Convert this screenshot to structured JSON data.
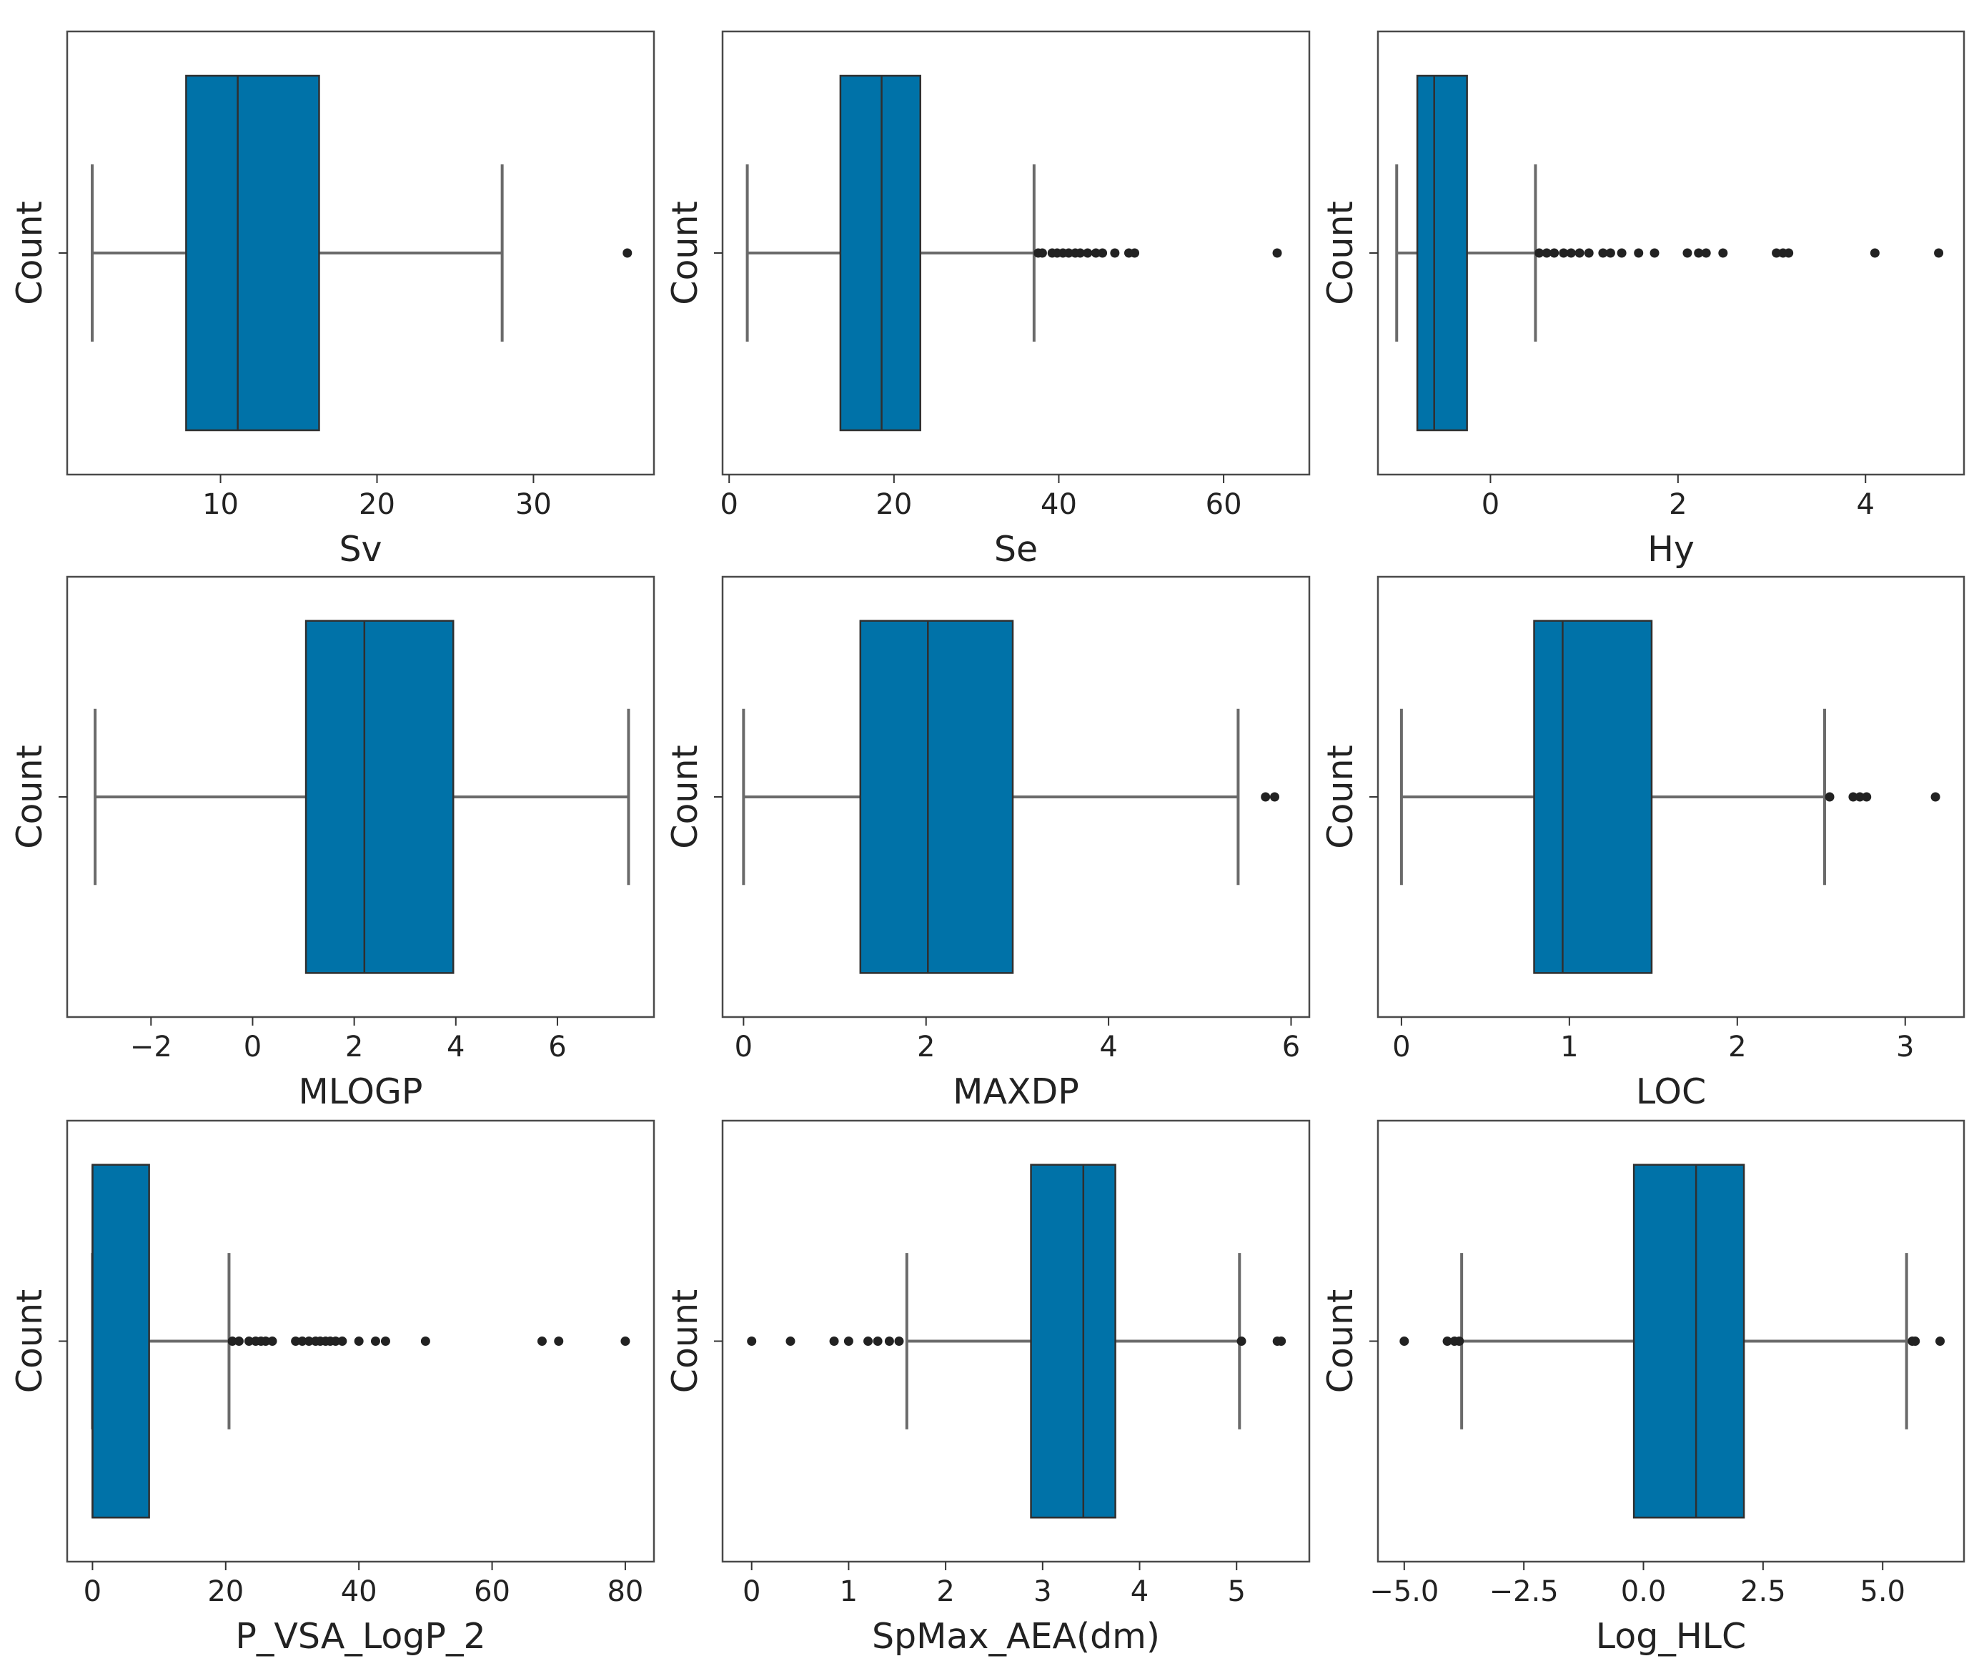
{
  "chart_data": [
    {
      "type": "box",
      "xlabel": "Sv",
      "ylabel": "Count",
      "xlim": [
        0.2,
        37.7
      ],
      "xticks": [
        10,
        20,
        30
      ],
      "tick_labels": [
        "10",
        "20",
        "30"
      ],
      "whisker_low": 1.8,
      "q1": 7.8,
      "median": 11.1,
      "q3": 16.3,
      "whisker_high": 28.0,
      "outliers": [
        36.0
      ]
    },
    {
      "type": "box",
      "xlabel": "Se",
      "ylabel": "Count",
      "xlim": [
        -0.8,
        70.4
      ],
      "xticks": [
        0,
        20,
        40,
        60
      ],
      "tick_labels": [
        "0",
        "20",
        "40",
        "60"
      ],
      "whisker_low": 2.2,
      "q1": 13.5,
      "median": 18.5,
      "q3": 23.2,
      "whisker_high": 37.0,
      "outliers": [
        37.5,
        38.0,
        39.2,
        39.8,
        40.5,
        41.2,
        42.0,
        42.6,
        43.5,
        44.5,
        45.3,
        46.8,
        48.5,
        49.2,
        66.5
      ]
    },
    {
      "type": "box",
      "xlabel": "Hy",
      "ylabel": "Count",
      "xlim": [
        -1.2,
        5.05
      ],
      "xticks": [
        0,
        2,
        4
      ],
      "tick_labels": [
        "0",
        "2",
        "4"
      ],
      "whisker_low": -1.0,
      "q1": -0.78,
      "median": -0.6,
      "q3": -0.25,
      "whisker_high": 0.48,
      "outliers": [
        0.52,
        0.6,
        0.68,
        0.78,
        0.86,
        0.95,
        1.05,
        1.2,
        1.28,
        1.4,
        1.58,
        1.75,
        2.1,
        2.22,
        2.3,
        2.48,
        3.05,
        3.12,
        3.18,
        4.1,
        4.78
      ]
    },
    {
      "type": "box",
      "xlabel": "MLOGP",
      "ylabel": "Count",
      "xlim": [
        -3.65,
        7.9
      ],
      "xticks": [
        -2,
        0,
        2,
        4,
        6
      ],
      "tick_labels": [
        "−2",
        "0",
        "2",
        "4",
        "6"
      ],
      "whisker_low": -3.1,
      "q1": 1.05,
      "median": 2.2,
      "q3": 3.95,
      "whisker_high": 7.4,
      "outliers": []
    },
    {
      "type": "box",
      "xlabel": "MAXDP",
      "ylabel": "Count",
      "xlim": [
        -0.23,
        6.2
      ],
      "xticks": [
        0,
        2,
        4,
        6
      ],
      "tick_labels": [
        "0",
        "2",
        "4",
        "6"
      ],
      "whisker_low": 0.0,
      "q1": 1.28,
      "median": 2.02,
      "q3": 2.95,
      "whisker_high": 5.42,
      "outliers": [
        5.72,
        5.82
      ]
    },
    {
      "type": "box",
      "xlabel": "LOC",
      "ylabel": "Count",
      "xlim": [
        -0.14,
        3.35
      ],
      "xticks": [
        0,
        1,
        2,
        3
      ],
      "tick_labels": [
        "0",
        "1",
        "2",
        "3"
      ],
      "whisker_low": 0.0,
      "q1": 0.79,
      "median": 0.96,
      "q3": 1.49,
      "whisker_high": 2.52,
      "outliers": [
        2.55,
        2.69,
        2.73,
        2.77,
        3.18
      ]
    },
    {
      "type": "box",
      "xlabel": "P_VSA_LogP_2",
      "ylabel": "Count",
      "xlim": [
        -3.8,
        84.3
      ],
      "xticks": [
        0,
        20,
        40,
        60,
        80
      ],
      "tick_labels": [
        "0",
        "20",
        "40",
        "60",
        "80"
      ],
      "whisker_low": 0.0,
      "q1": 0.0,
      "median": 0.0,
      "q3": 8.5,
      "whisker_high": 20.5,
      "outliers": [
        21.0,
        22.0,
        23.5,
        24.5,
        25.3,
        26.0,
        27.0,
        30.5,
        31.5,
        32.5,
        33.5,
        34.2,
        35.0,
        35.7,
        36.5,
        37.5,
        40.0,
        42.5,
        44.0,
        50.0,
        67.5,
        70.0,
        80.0
      ]
    },
    {
      "type": "box",
      "xlabel": "SpMax_AEA(dm)",
      "ylabel": "Count",
      "xlim": [
        -0.3,
        5.75
      ],
      "xticks": [
        0,
        1,
        2,
        3,
        4,
        5
      ],
      "tick_labels": [
        "0",
        "1",
        "2",
        "3",
        "4",
        "5"
      ],
      "whisker_low": 1.6,
      "q1": 2.88,
      "median": 3.42,
      "q3": 3.75,
      "whisker_high": 5.03,
      "outliers": [
        0.0,
        0.4,
        0.85,
        1.0,
        1.2,
        1.3,
        1.42,
        1.52,
        5.05,
        5.42,
        5.46
      ]
    },
    {
      "type": "box",
      "xlabel": "Log_HLC",
      "ylabel": "Count",
      "xlim": [
        -5.55,
        6.7
      ],
      "xticks": [
        -5,
        -2.5,
        0,
        2.5,
        5
      ],
      "tick_labels": [
        "−5.0",
        "−2.5",
        "0.0",
        "2.5",
        "5.0"
      ],
      "whisker_low": -3.8,
      "q1": -0.2,
      "median": 1.1,
      "q3": 2.1,
      "whisker_high": 5.5,
      "outliers": [
        -5.0,
        -4.1,
        -3.95,
        -3.85,
        5.62,
        5.68,
        6.2
      ]
    }
  ]
}
